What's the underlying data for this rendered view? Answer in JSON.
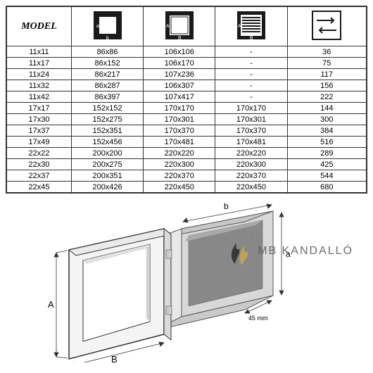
{
  "table": {
    "model_header": "MODEL",
    "columns": [
      "model",
      "inner",
      "outer",
      "louver",
      "depth"
    ],
    "rows": [
      [
        "11x11",
        "86x86",
        "106x106",
        "-",
        "36"
      ],
      [
        "11x17",
        "86x152",
        "106x170",
        "-",
        "75"
      ],
      [
        "11x24",
        "86x217",
        "107x236",
        "-",
        "117"
      ],
      [
        "11x32",
        "86x287",
        "106x307",
        "-",
        "156"
      ],
      [
        "11x42",
        "86x397",
        "107x417",
        "-",
        "222"
      ],
      [
        "17x17",
        "152x152",
        "170x170",
        "170x170",
        "144"
      ],
      [
        "17x30",
        "152x275",
        "170x301",
        "170x301",
        "300"
      ],
      [
        "17x37",
        "152x351",
        "170x370",
        "170x370",
        "384"
      ],
      [
        "17x49",
        "152x456",
        "170x481",
        "170x481",
        "516"
      ],
      [
        "22x22",
        "200x200",
        "220x220",
        "220x220",
        "289"
      ],
      [
        "22x30",
        "200x275",
        "220x300",
        "220x300",
        "425"
      ],
      [
        "22x37",
        "200x351",
        "220x370",
        "220x370",
        "544"
      ],
      [
        "22x45",
        "200x426",
        "220x450",
        "220x450",
        "680"
      ]
    ],
    "col_widths": [
      "18%",
      "20%",
      "20%",
      "20%",
      "22%"
    ],
    "header_bg": "#ffffff",
    "border_color": "#333333",
    "font_size": 11
  },
  "icons": {
    "inner_label_a": "a",
    "inner_label_b": "b",
    "outer_label_a": "A",
    "outer_label_b": "B",
    "louver_label_a": "A",
    "louver_label_b": "B"
  },
  "diagram": {
    "label_A": "A",
    "label_B": "B",
    "label_a": "a",
    "label_b": "b",
    "depth_label": "45 mm"
  },
  "watermark": {
    "text": "MB KANDALLÓ",
    "flame_colors": [
      "#2b2b2b",
      "#c9a84a"
    ]
  }
}
